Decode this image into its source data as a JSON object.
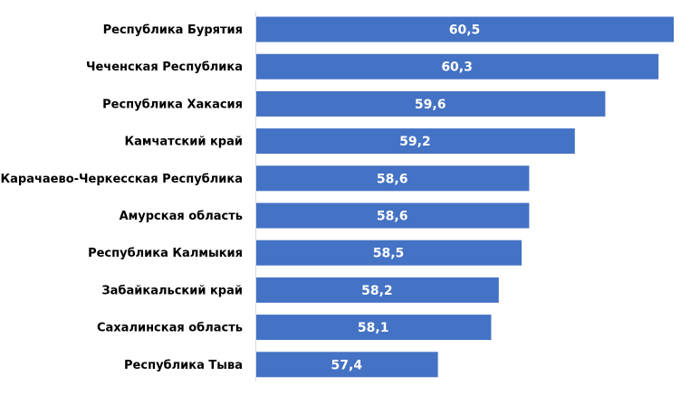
{
  "chart_data": {
    "type": "bar",
    "orientation": "horizontal",
    "categories": [
      "Республика Бурятия",
      "Чеченская Республика",
      "Республика Хакасия",
      "Камчатский край",
      "Карачаево-Черкесская Республика",
      "Амурская область",
      "Республика Калмыкия",
      "Забайкальский край",
      "Сахалинская область",
      "Республика Тыва"
    ],
    "values": [
      60.5,
      60.3,
      59.6,
      59.2,
      58.6,
      58.6,
      58.5,
      58.2,
      58.1,
      57.4
    ],
    "data_labels": [
      "60,5",
      "60,3",
      "59,6",
      "59,2",
      "58,6",
      "58,6",
      "58,5",
      "58,2",
      "58,1",
      "57,4"
    ],
    "xlim": [
      55,
      60.5
    ],
    "grid": false,
    "legend": "none",
    "bar_color": "#4472C4",
    "title": "",
    "xlabel": "",
    "ylabel": ""
  }
}
